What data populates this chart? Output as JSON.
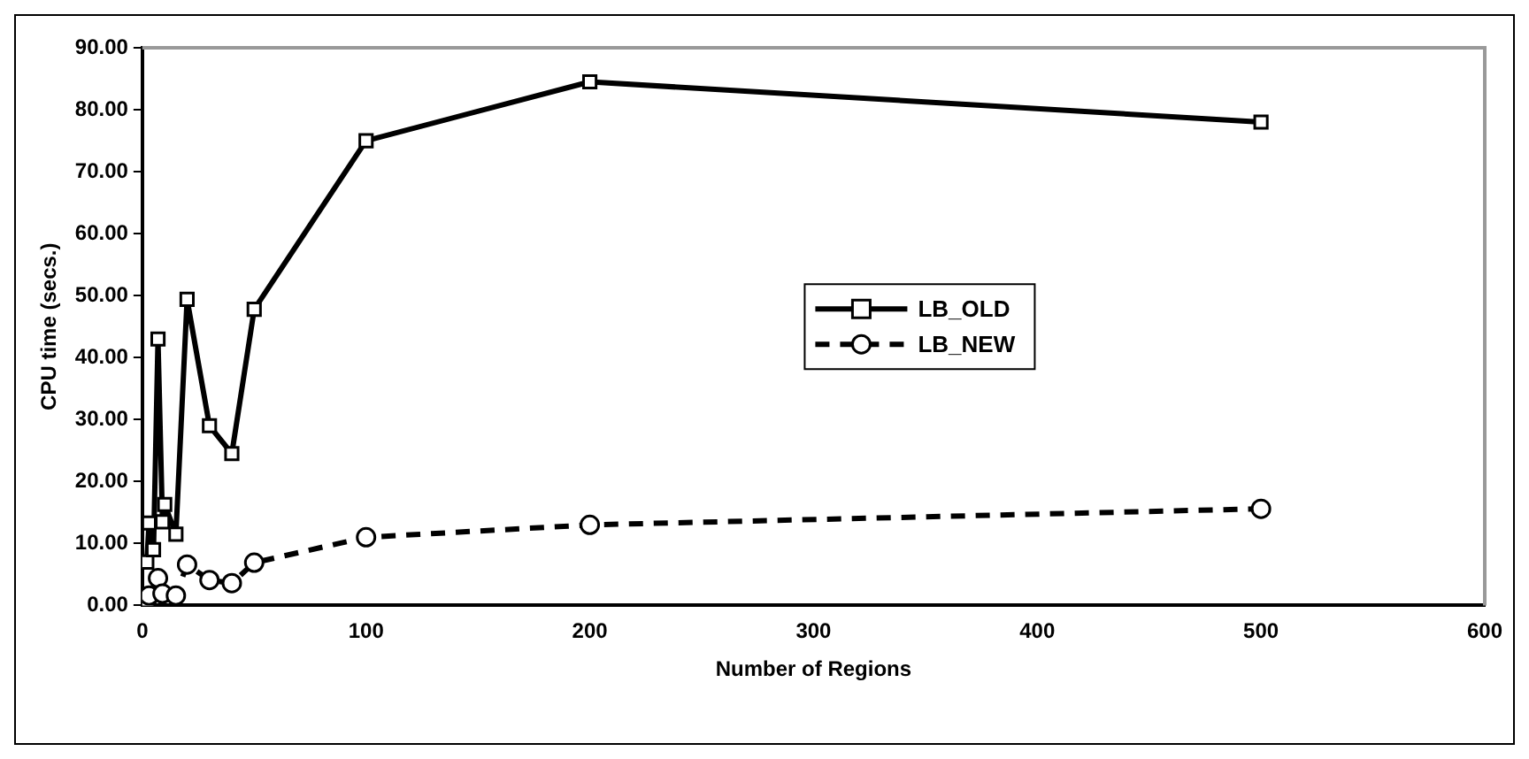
{
  "chart_data": {
    "type": "line",
    "xlabel": "Number of Regions",
    "ylabel": "CPU time (secs.)",
    "xlim": [
      0,
      600
    ],
    "xticks": [
      0,
      100,
      200,
      300,
      400,
      500,
      600
    ],
    "ylim": [
      0,
      90
    ],
    "yticks": [
      {
        "value": 0,
        "label": "0.00"
      },
      {
        "value": 10,
        "label": "10.00"
      },
      {
        "value": 20,
        "label": "20.00"
      },
      {
        "value": 30,
        "label": "30.00"
      },
      {
        "value": 40,
        "label": "40.00"
      },
      {
        "value": 50,
        "label": "50.00"
      },
      {
        "value": 60,
        "label": "60.00"
      },
      {
        "value": 70,
        "label": "70.00"
      },
      {
        "value": 80,
        "label": "80.00"
      },
      {
        "value": 90,
        "label": "90.00"
      }
    ],
    "grid": false,
    "legend": "center",
    "series": [
      {
        "name": "LB_OLD",
        "color": "#000000",
        "marker": "square",
        "line_style": "solid",
        "x": [
          2,
          3,
          5,
          7,
          9,
          10,
          15,
          20,
          30,
          40,
          50,
          100,
          200,
          500
        ],
        "values": [
          7,
          13.3,
          9,
          43,
          13.5,
          16.3,
          11.5,
          49.4,
          29,
          24.5,
          47.8,
          75,
          84.5,
          78
        ]
      },
      {
        "name": "LB_NEW",
        "color": "#000000",
        "marker": "circle",
        "line_style": "dashed",
        "x": [
          2,
          3,
          7,
          9,
          15,
          20,
          30,
          40,
          50,
          100,
          200,
          500
        ],
        "values": [
          0.9,
          1.6,
          4.4,
          1.9,
          1.6,
          6.6,
          4.1,
          3.6,
          6.9,
          11,
          13,
          15.6
        ]
      }
    ]
  }
}
